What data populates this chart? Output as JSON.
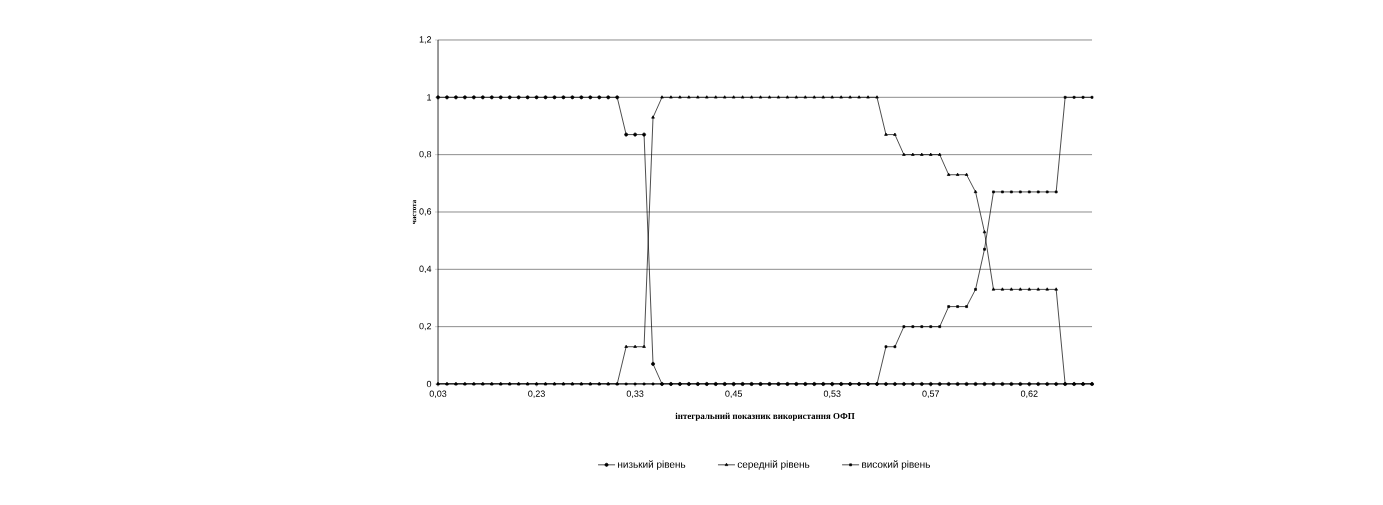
{
  "chart_data": {
    "type": "line",
    "xlabel": "інтегральний показник використання ОФП",
    "ylabel": "частота",
    "categories": [
      "0,03",
      null,
      null,
      null,
      null,
      null,
      null,
      null,
      null,
      null,
      null,
      "0,23",
      null,
      null,
      null,
      null,
      null,
      null,
      null,
      null,
      null,
      null,
      "0,33",
      null,
      null,
      null,
      null,
      null,
      null,
      null,
      null,
      null,
      null,
      "0,45",
      null,
      null,
      null,
      null,
      null,
      null,
      null,
      null,
      null,
      null,
      "0,53",
      null,
      null,
      null,
      null,
      null,
      null,
      null,
      null,
      null,
      null,
      "0,57",
      null,
      null,
      null,
      null,
      null,
      null,
      null,
      null,
      null,
      null,
      "0,62",
      null,
      null,
      null,
      null,
      null,
      null,
      null
    ],
    "series": [
      {
        "name": "низький рівень",
        "color": "#000000",
        "marker": "circle",
        "values": [
          1,
          1,
          1,
          1,
          1,
          1,
          1,
          1,
          1,
          1,
          1,
          1,
          1,
          1,
          1,
          1,
          1,
          1,
          1,
          1,
          1,
          0.87,
          0.87,
          0.87,
          0.07,
          0,
          0,
          0,
          0,
          0,
          0,
          0,
          0,
          0,
          0,
          0,
          0,
          0,
          0,
          0,
          0,
          0,
          0,
          0,
          0,
          0,
          0,
          0,
          0,
          0,
          0,
          0,
          0,
          0,
          0,
          0,
          0,
          0,
          0,
          0,
          0,
          0,
          0,
          0,
          0,
          0,
          0,
          0,
          0,
          0,
          0,
          0,
          0,
          0
        ]
      },
      {
        "name": "середній рівень",
        "color": "#000000",
        "marker": "triangle",
        "values": [
          0,
          0,
          0,
          0,
          0,
          0,
          0,
          0,
          0,
          0,
          0,
          0,
          0,
          0,
          0,
          0,
          0,
          0,
          0,
          0,
          0,
          0.13,
          0.13,
          0.13,
          0.93,
          1,
          1,
          1,
          1,
          1,
          1,
          1,
          1,
          1,
          1,
          1,
          1,
          1,
          1,
          1,
          1,
          1,
          1,
          1,
          1,
          1,
          1,
          1,
          1,
          1,
          0.87,
          0.87,
          0.8,
          0.8,
          0.8,
          0.8,
          0.8,
          0.73,
          0.73,
          0.73,
          0.67,
          0.53,
          0.33,
          0.33,
          0.33,
          0.33,
          0.33,
          0.33,
          0.33,
          0.33,
          0,
          0,
          0,
          0
        ]
      },
      {
        "name": "високий рівень",
        "color": "#000000",
        "marker": "square",
        "values": [
          0,
          0,
          0,
          0,
          0,
          0,
          0,
          0,
          0,
          0,
          0,
          0,
          0,
          0,
          0,
          0,
          0,
          0,
          0,
          0,
          0,
          0,
          0,
          0,
          0,
          0,
          0,
          0,
          0,
          0,
          0,
          0,
          0,
          0,
          0,
          0,
          0,
          0,
          0,
          0,
          0,
          0,
          0,
          0,
          0,
          0,
          0,
          0,
          0,
          0,
          0.13,
          0.13,
          0.2,
          0.2,
          0.2,
          0.2,
          0.2,
          0.27,
          0.27,
          0.27,
          0.33,
          0.47,
          0.67,
          0.67,
          0.67,
          0.67,
          0.67,
          0.67,
          0.67,
          0.67,
          1,
          1,
          1,
          1
        ]
      }
    ],
    "ylim": [
      0,
      1.2
    ],
    "yticks": [
      0,
      {
        "value": 0.2,
        "label": "0,2"
      },
      {
        "value": 0.4,
        "label": "0,4"
      },
      {
        "value": 0.6,
        "label": "0,6"
      },
      {
        "value": 0.8,
        "label": "0,8"
      },
      1,
      {
        "value": 1.2,
        "label": "1,2"
      }
    ],
    "grid": "y",
    "legend": "bottom",
    "line_style": "solid"
  }
}
